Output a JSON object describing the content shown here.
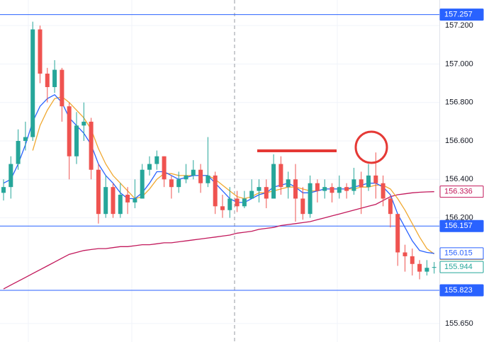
{
  "chart_data": {
    "type": "candlestick",
    "ylim": [
      155.554,
      157.333
    ],
    "yticks": [
      {
        "value": 157.2,
        "label": "157.200"
      },
      {
        "value": 157.0,
        "label": "157.000"
      },
      {
        "value": 156.8,
        "label": "156.800"
      },
      {
        "value": 156.6,
        "label": "156.600"
      },
      {
        "value": 156.4,
        "label": "156.400"
      },
      {
        "value": 156.2,
        "label": "156.200"
      },
      {
        "value": 155.65,
        "label": "155.650"
      }
    ],
    "grid": true,
    "up_color": "#26a69a",
    "down_color": "#ef5350",
    "open": [
      156.33,
      156.36,
      156.48,
      156.6,
      156.62,
      157.18,
      156.95,
      156.88,
      156.97,
      156.78,
      156.52,
      156.68,
      156.7,
      156.45,
      156.22,
      156.36,
      156.22,
      156.32,
      156.28,
      156.3,
      156.45,
      156.48,
      156.52,
      156.4,
      156.36,
      156.4,
      156.42,
      156.45,
      156.38,
      156.42,
      156.26,
      156.24,
      156.3,
      156.26,
      156.3,
      156.34,
      156.36,
      156.3,
      156.48,
      156.36,
      156.4,
      156.3,
      156.22,
      156.38,
      156.34,
      156.36,
      156.33,
      156.36,
      156.34,
      156.4,
      156.36,
      156.42,
      156.38,
      156.3,
      156.22,
      156.02,
      156.0,
      155.96,
      155.92,
      155.94
    ],
    "high": [
      156.4,
      156.52,
      156.66,
      156.7,
      157.22,
      157.2,
      156.98,
      157.02,
      156.98,
      156.8,
      156.75,
      156.8,
      156.72,
      156.48,
      156.42,
      156.38,
      156.38,
      156.36,
      156.4,
      156.48,
      156.52,
      156.55,
      156.52,
      156.42,
      156.44,
      156.48,
      156.5,
      156.48,
      156.62,
      156.44,
      156.32,
      156.36,
      156.34,
      156.34,
      156.4,
      156.4,
      156.4,
      156.53,
      156.52,
      156.44,
      156.48,
      156.36,
      156.42,
      156.4,
      156.4,
      156.38,
      156.42,
      156.38,
      156.46,
      156.44,
      156.48,
      156.54,
      156.42,
      156.32,
      156.22,
      156.06,
      156.04,
      155.98,
      155.98,
      155.97
    ],
    "low": [
      156.29,
      156.3,
      156.45,
      156.55,
      156.6,
      156.9,
      156.8,
      156.85,
      156.7,
      156.4,
      156.48,
      156.6,
      156.4,
      156.17,
      156.2,
      156.2,
      156.2,
      156.22,
      156.25,
      156.3,
      156.42,
      156.45,
      156.36,
      156.3,
      156.33,
      156.38,
      156.4,
      156.33,
      156.36,
      156.22,
      156.2,
      156.2,
      156.23,
      156.25,
      156.3,
      156.28,
      156.25,
      156.3,
      156.32,
      156.3,
      156.18,
      156.19,
      156.2,
      156.28,
      156.3,
      156.28,
      156.3,
      156.3,
      156.32,
      156.22,
      156.34,
      156.3,
      156.26,
      156.15,
      155.95,
      155.92,
      155.9,
      155.88,
      155.9,
      155.91
    ],
    "close": [
      156.36,
      156.48,
      156.6,
      156.62,
      157.18,
      156.95,
      156.88,
      156.97,
      156.78,
      156.52,
      156.68,
      156.7,
      156.45,
      156.22,
      156.36,
      156.22,
      156.32,
      156.28,
      156.3,
      156.45,
      156.48,
      156.52,
      156.4,
      156.36,
      156.4,
      156.42,
      156.45,
      156.38,
      156.42,
      156.26,
      156.24,
      156.3,
      156.26,
      156.3,
      156.34,
      156.36,
      156.3,
      156.48,
      156.36,
      156.4,
      156.3,
      156.22,
      156.38,
      156.34,
      156.36,
      156.33,
      156.36,
      156.34,
      156.4,
      156.36,
      156.42,
      156.38,
      156.3,
      156.22,
      156.02,
      156.0,
      155.96,
      155.92,
      155.94,
      155.944
    ],
    "series": [
      {
        "color": "#c2185b",
        "values": [
          155.83,
          155.85,
          155.87,
          155.89,
          155.91,
          155.93,
          155.95,
          155.97,
          155.99,
          156.01,
          156.02,
          156.03,
          156.035,
          156.04,
          156.04,
          156.045,
          156.05,
          156.05,
          156.055,
          156.06,
          156.06,
          156.065,
          156.07,
          156.07,
          156.075,
          156.08,
          156.085,
          156.09,
          156.095,
          156.1,
          156.105,
          156.11,
          156.12,
          156.125,
          156.13,
          156.14,
          156.145,
          156.15,
          156.16,
          156.165,
          156.17,
          156.175,
          156.18,
          156.19,
          156.2,
          156.21,
          156.22,
          156.23,
          156.24,
          156.25,
          156.26,
          156.27,
          156.29,
          156.31,
          156.32,
          156.325,
          156.33,
          156.333,
          156.335,
          156.336
        ]
      },
      {
        "color": "#f0a830",
        "values": [
          null,
          null,
          null,
          null,
          156.55,
          156.68,
          156.76,
          156.82,
          156.83,
          156.8,
          156.76,
          156.72,
          156.66,
          156.56,
          156.48,
          156.42,
          156.38,
          156.34,
          156.3,
          156.31,
          156.35,
          156.4,
          156.43,
          156.43,
          156.42,
          156.42,
          156.42,
          156.42,
          156.42,
          156.4,
          156.37,
          156.34,
          156.31,
          156.3,
          156.31,
          156.33,
          156.33,
          156.34,
          156.35,
          156.36,
          156.36,
          156.35,
          156.34,
          156.34,
          156.35,
          156.35,
          156.35,
          156.35,
          156.35,
          156.36,
          156.36,
          156.37,
          156.37,
          156.35,
          156.3,
          156.24,
          156.17,
          156.1,
          156.04,
          156.012
        ]
      },
      {
        "color": "#2962ff",
        "values": [
          156.38,
          156.4,
          156.48,
          156.58,
          156.7,
          156.78,
          156.82,
          156.84,
          156.8,
          156.72,
          156.68,
          156.64,
          156.58,
          156.48,
          156.42,
          156.38,
          156.33,
          156.3,
          156.3,
          156.33,
          156.38,
          156.44,
          156.44,
          156.42,
          156.4,
          156.41,
          156.42,
          156.42,
          156.42,
          156.38,
          156.34,
          156.3,
          156.28,
          156.28,
          156.3,
          156.32,
          156.33,
          156.36,
          156.37,
          156.38,
          156.36,
          156.33,
          156.33,
          156.34,
          156.35,
          156.35,
          156.35,
          156.35,
          156.36,
          156.37,
          156.38,
          156.38,
          156.36,
          156.32,
          156.22,
          156.15,
          156.08,
          156.03,
          156.02,
          156.015
        ]
      }
    ],
    "price_lines": [
      {
        "value": 157.257,
        "color": "#2962ff"
      },
      {
        "value": 156.157,
        "color": "#2962ff"
      },
      {
        "value": 155.823,
        "color": "#2962ff"
      }
    ]
  }
}
